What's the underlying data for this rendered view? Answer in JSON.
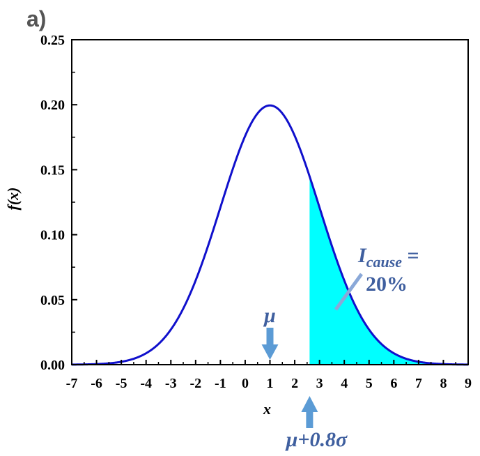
{
  "panel_label": "a)",
  "chart_data": {
    "type": "line",
    "title": "",
    "xlabel": "x",
    "ylabel": "f(x)",
    "xlim": [
      -7,
      9
    ],
    "ylim": [
      0,
      0.25
    ],
    "x_ticks": [
      "-7",
      "-6",
      "-5",
      "-4",
      "-3",
      "-2",
      "-1",
      "0",
      "1",
      "2",
      "3",
      "4",
      "5",
      "6",
      "7",
      "8",
      "9"
    ],
    "y_ticks": [
      "0.00",
      "0.05",
      "0.10",
      "0.15",
      "0.20",
      "0.25"
    ],
    "series": [
      {
        "distribution": "normal",
        "mean": 1,
        "std": 2,
        "color": "#1010cc"
      }
    ],
    "shaded_region": {
      "x_start": 2.6,
      "x_end": 9,
      "color": "#00ffff"
    },
    "annotations": {
      "mu_label": "μ",
      "mu_x": 1,
      "threshold_label": "μ+0.8σ",
      "threshold_x": 2.6,
      "icause_symbol": "I",
      "icause_subscript": "cause",
      "icause_equals": " =",
      "icause_value": "20%",
      "arrow_color": "#5b9bd5"
    },
    "grid": false,
    "legend": "none"
  }
}
